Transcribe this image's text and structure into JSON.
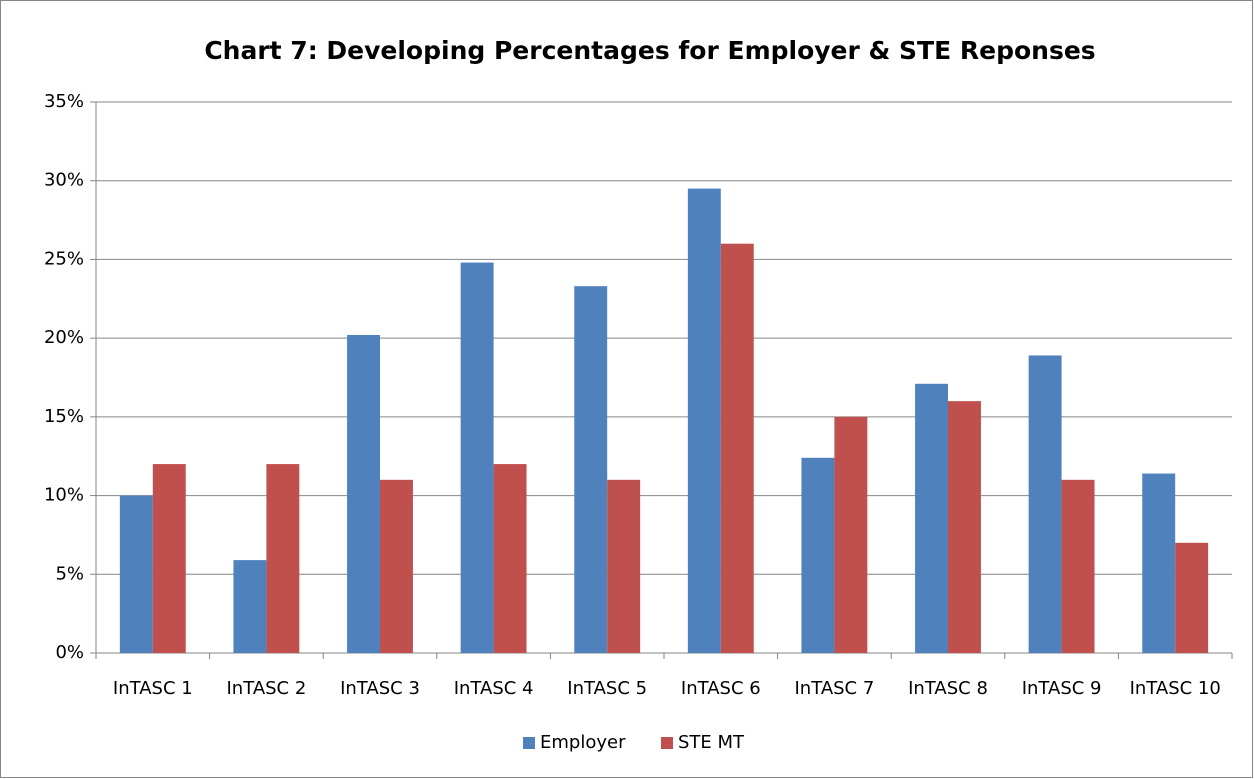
{
  "chart_data": {
    "type": "bar",
    "title": "Chart 7:  Developing Percentages for Employer & STE Reponses",
    "categories": [
      "InTASC 1",
      "InTASC 2",
      "InTASC 3",
      "InTASC 4",
      "InTASC 5",
      "InTASC 6",
      "InTASC 7",
      "InTASC 8",
      "InTASC 9",
      "InTASC 10"
    ],
    "series": [
      {
        "name": "Employer",
        "color": "#4f81bd",
        "values": [
          10.0,
          5.9,
          20.2,
          24.8,
          23.3,
          29.5,
          12.4,
          17.1,
          18.9,
          11.4
        ]
      },
      {
        "name": "STE MT",
        "color": "#c0504d",
        "values": [
          12,
          12,
          11,
          12,
          11,
          26,
          15,
          16,
          11,
          7
        ]
      }
    ],
    "ylim": [
      0,
      35
    ],
    "yticks": [
      {
        "value": 0,
        "label": "0%"
      },
      {
        "value": 5,
        "label": "5%"
      },
      {
        "value": 10,
        "label": "10%"
      },
      {
        "value": 15,
        "label": "15%"
      },
      {
        "value": 20,
        "label": "20%"
      },
      {
        "value": 25,
        "label": "25%"
      },
      {
        "value": 30,
        "label": "30%"
      },
      {
        "value": 35,
        "label": "35%"
      }
    ],
    "grid": true,
    "legend": "bottom"
  }
}
